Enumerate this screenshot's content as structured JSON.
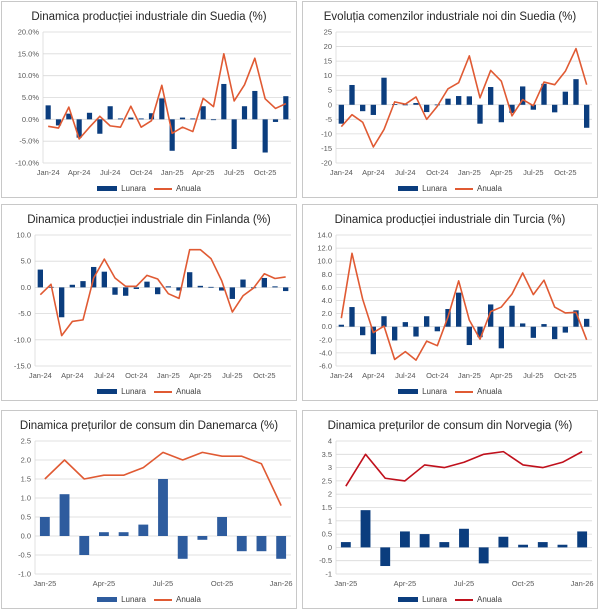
{
  "legend": {
    "bar_label": "Lunara",
    "line_label": "Anuala"
  },
  "chart_data": [
    {
      "id": "se-ip",
      "type": "bar+line",
      "title": "Dinamica producției industriale din Suedia (%)",
      "ylim": [
        -10,
        20
      ],
      "yticks": [
        -10,
        -5,
        0,
        5,
        10,
        15,
        20
      ],
      "ytick_format": "pct1",
      "categories": [
        "Jan-24",
        "Feb-24",
        "Mar-24",
        "Apr-24",
        "May-24",
        "Jun-24",
        "Jul-24",
        "Aug-24",
        "Sep-24",
        "Oct-24",
        "Nov-24",
        "Dec-24",
        "Jan-25",
        "Feb-25",
        "Mar-25",
        "Apr-25",
        "May-25",
        "Jun-25",
        "Jul-25",
        "Aug-25",
        "Sep-25",
        "Oct-25",
        "Nov-25",
        "Dec-25"
      ],
      "xtick_labels": [
        "Jan-24",
        "",
        "",
        "Apr-24",
        "",
        "",
        "Jul-24",
        "",
        "",
        "Oct-24",
        "",
        "",
        "Jan-25",
        "",
        "",
        "Apr-25",
        "",
        "",
        "Jul-25",
        "",
        "",
        "Oct-25",
        "",
        ""
      ],
      "series": [
        {
          "name": "Lunara",
          "kind": "bar",
          "color": "#0b3d7e",
          "values": [
            3.2,
            -1.4,
            1.3,
            -4.2,
            1.5,
            -3.3,
            3.0,
            0.2,
            0.4,
            0.2,
            1.4,
            4.8,
            -7.2,
            0.4,
            0.2,
            3.0,
            -0.1,
            8.1,
            -6.8,
            3.0,
            6.5,
            -7.6,
            -0.6,
            5.3
          ]
        },
        {
          "name": "Anuala",
          "kind": "line",
          "color": "#e05a33",
          "values": [
            -1.6,
            -2.0,
            2.8,
            -4.5,
            -1.8,
            0.7,
            -1.5,
            -1.8,
            3.0,
            -1.8,
            -0.3,
            7.8,
            -3.2,
            -1.8,
            -2.8,
            4.8,
            2.9,
            15.0,
            4.2,
            7.9,
            14.0,
            4.7,
            2.5,
            3.6
          ]
        }
      ]
    },
    {
      "id": "se-orders",
      "type": "bar+line",
      "title": "Evoluția comenzilor industriale noi din Suedia (%)",
      "ylim": [
        -20,
        25
      ],
      "yticks": [
        -20,
        -15,
        -10,
        -5,
        0,
        5,
        10,
        15,
        20,
        25
      ],
      "ytick_format": "int",
      "categories": [
        "Jan-24",
        "Feb-24",
        "Mar-24",
        "Apr-24",
        "May-24",
        "Jun-24",
        "Jul-24",
        "Aug-24",
        "Sep-24",
        "Oct-24",
        "Nov-24",
        "Dec-24",
        "Jan-25",
        "Feb-25",
        "Mar-25",
        "Apr-25",
        "May-25",
        "Jun-25",
        "Jul-25",
        "Aug-25",
        "Sep-25",
        "Oct-25",
        "Nov-25",
        "Dec-25"
      ],
      "xtick_labels": [
        "Jan-24",
        "",
        "",
        "Apr-24",
        "",
        "",
        "Jul-24",
        "",
        "",
        "Oct-24",
        "",
        "",
        "Jan-25",
        "",
        "",
        "Apr-25",
        "",
        "",
        "Jul-25",
        "",
        "",
        "Oct-25",
        "",
        ""
      ],
      "series": [
        {
          "name": "Lunara",
          "kind": "bar",
          "color": "#0b3d7e",
          "values": [
            -6.5,
            6.8,
            -2.2,
            -3.5,
            9.3,
            0.2,
            0.1,
            0.6,
            -2.5,
            0.1,
            2.1,
            3.0,
            2.9,
            -6.5,
            6.1,
            -6.0,
            -2.8,
            6.3,
            -1.7,
            7.2,
            -2.6,
            4.5,
            8.8,
            -7.9
          ]
        },
        {
          "name": "Anuala",
          "kind": "line",
          "color": "#e05a33",
          "values": [
            -7.5,
            -3.4,
            -6.0,
            -14.5,
            -8.5,
            1.0,
            0.2,
            2.7,
            -5.0,
            -0.5,
            5.5,
            7.6,
            16.8,
            2.4,
            11.8,
            8.1,
            -3.8,
            1.8,
            -0.3,
            7.8,
            6.9,
            11.5,
            19.3,
            6.9
          ]
        }
      ]
    },
    {
      "id": "fi-ip",
      "type": "bar+line",
      "title": "Dinamica producției industriale din Finlanda (%)",
      "ylim": [
        -15,
        10
      ],
      "yticks": [
        -15,
        -10,
        -5,
        0,
        5,
        10
      ],
      "ytick_format": "dec1",
      "categories": [
        "Jan-24",
        "Feb-24",
        "Mar-24",
        "Apr-24",
        "May-24",
        "Jun-24",
        "Jul-24",
        "Aug-24",
        "Sep-24",
        "Oct-24",
        "Nov-24",
        "Dec-24",
        "Jan-25",
        "Feb-25",
        "Mar-25",
        "Apr-25",
        "May-25",
        "Jun-25",
        "Jul-25",
        "Aug-25",
        "Sep-25",
        "Oct-25",
        "Nov-25",
        "Dec-25"
      ],
      "xtick_labels": [
        "Jan-24",
        "",
        "",
        "Apr-24",
        "",
        "",
        "Jul-24",
        "",
        "",
        "Oct-24",
        "",
        "",
        "Jan-25",
        "",
        "",
        "Apr-25",
        "",
        "",
        "Jul-25",
        "",
        "",
        "Oct-25",
        "",
        ""
      ],
      "series": [
        {
          "name": "Lunara",
          "kind": "bar",
          "color": "#0b3d7e",
          "values": [
            3.4,
            0.1,
            -5.7,
            0.5,
            1.2,
            3.9,
            3.0,
            -1.4,
            -1.6,
            -0.3,
            1.1,
            -1.3,
            0.2,
            -0.6,
            2.9,
            0.3,
            0.1,
            -0.6,
            -2.2,
            1.5,
            0.0,
            1.8,
            0.2,
            -0.7
          ]
        },
        {
          "name": "Anuala",
          "kind": "line",
          "color": "#e05a33",
          "values": [
            -1.4,
            0.6,
            -9.2,
            -6.5,
            -6.2,
            1.8,
            5.4,
            1.8,
            0.2,
            0.2,
            2.3,
            1.6,
            -1.2,
            -2.1,
            7.2,
            7.2,
            5.5,
            1.3,
            -4.7,
            -1.6,
            -0.1,
            2.6,
            1.7,
            2.0
          ]
        }
      ]
    },
    {
      "id": "tr-ip",
      "type": "bar+line",
      "title": "Dinamica producției industriale din Turcia (%)",
      "ylim": [
        -6,
        14
      ],
      "yticks": [
        -6,
        -4,
        -2,
        0,
        2,
        4,
        6,
        8,
        10,
        12,
        14
      ],
      "ytick_format": "dec1",
      "categories": [
        "Jan-24",
        "Feb-24",
        "Mar-24",
        "Apr-24",
        "May-24",
        "Jun-24",
        "Jul-24",
        "Aug-24",
        "Sep-24",
        "Oct-24",
        "Nov-24",
        "Dec-24",
        "Jan-25",
        "Feb-25",
        "Mar-25",
        "Apr-25",
        "May-25",
        "Jun-25",
        "Jul-25",
        "Aug-25",
        "Sep-25",
        "Oct-25",
        "Nov-25",
        "Dec-25"
      ],
      "xtick_labels": [
        "Jan-24",
        "",
        "",
        "Apr-24",
        "",
        "",
        "Jul-24",
        "",
        "",
        "Oct-24",
        "",
        "",
        "Jan-25",
        "",
        "",
        "Apr-25",
        "",
        "",
        "Jul-25",
        "",
        "",
        "Oct-25",
        "",
        ""
      ],
      "series": [
        {
          "name": "Lunara",
          "kind": "bar",
          "color": "#0b3d7e",
          "values": [
            0.3,
            3.0,
            -1.3,
            -4.2,
            1.6,
            -2.1,
            0.7,
            -1.5,
            1.6,
            -0.7,
            2.7,
            5.2,
            -2.8,
            -1.6,
            3.4,
            -3.3,
            3.2,
            0.5,
            -1.7,
            0.4,
            -1.9,
            -0.9,
            2.5,
            1.2
          ]
        },
        {
          "name": "Anuala",
          "kind": "line",
          "color": "#e05a33",
          "values": [
            1.3,
            11.2,
            4.2,
            -0.9,
            0.1,
            -5.0,
            -3.8,
            -5.1,
            -2.2,
            -2.9,
            1.5,
            7.0,
            1.0,
            -1.9,
            2.3,
            3.0,
            5.0,
            8.2,
            4.9,
            7.1,
            3.0,
            2.1,
            2.2,
            -2.0
          ]
        }
      ]
    },
    {
      "id": "dk-cpi",
      "type": "bar+line",
      "title": "Dinamica prețurilor de consum din Danemarca (%)",
      "ylim": [
        -1,
        2.5
      ],
      "yticks": [
        -1,
        -0.5,
        0,
        0.5,
        1,
        1.5,
        2,
        2.5
      ],
      "ytick_format": "dec1",
      "categories": [
        "Jan-25",
        "Feb-25",
        "Mar-25",
        "Apr-25",
        "May-25",
        "Jun-25",
        "Jul-25",
        "Aug-25",
        "Sep-25",
        "Oct-25",
        "Nov-25",
        "Dec-25",
        "Jan-26"
      ],
      "xtick_labels": [
        "Jan-25",
        "",
        "",
        "Apr-25",
        "",
        "",
        "Jul-25",
        "",
        "",
        "Oct-25",
        "",
        "",
        "Jan-26"
      ],
      "series": [
        {
          "name": "Lunara",
          "kind": "bar",
          "color": "#2e5c9e",
          "values": [
            0.5,
            1.1,
            -0.5,
            0.1,
            0.1,
            0.3,
            1.5,
            -0.6,
            -0.1,
            0.5,
            -0.4,
            -0.4,
            -0.6
          ]
        },
        {
          "name": "Anuala",
          "kind": "line",
          "color": "#e05a33",
          "values": [
            1.5,
            2.0,
            1.5,
            1.6,
            1.6,
            1.8,
            2.2,
            2.0,
            2.2,
            2.1,
            2.1,
            1.9,
            0.8
          ]
        }
      ]
    },
    {
      "id": "no-cpi",
      "type": "bar+line",
      "title": "Dinamica prețurilor de consum din Norvegia (%)",
      "ylim": [
        -1,
        4
      ],
      "yticks": [
        -1,
        -0.5,
        0,
        0.5,
        1,
        1.5,
        2,
        2.5,
        3,
        3.5,
        4
      ],
      "ytick_format": "auto",
      "categories": [
        "Jan-25",
        "Feb-25",
        "Mar-25",
        "Apr-25",
        "May-25",
        "Jun-25",
        "Jul-25",
        "Aug-25",
        "Sep-25",
        "Oct-25",
        "Nov-25",
        "Dec-25",
        "Jan-26"
      ],
      "xtick_labels": [
        "Jan-25",
        "",
        "",
        "Apr-25",
        "",
        "",
        "Jul-25",
        "",
        "",
        "Oct-25",
        "",
        "",
        "Jan-26"
      ],
      "series": [
        {
          "name": "Lunara",
          "kind": "bar",
          "color": "#0b3d7e",
          "values": [
            0.2,
            1.4,
            -0.7,
            0.6,
            0.5,
            0.2,
            0.7,
            -0.6,
            0.4,
            0.1,
            0.2,
            0.1,
            0.6
          ]
        },
        {
          "name": "Anuala",
          "kind": "line",
          "color": "#c0101c",
          "values": [
            2.3,
            3.5,
            2.6,
            2.5,
            3.1,
            3.0,
            3.2,
            3.5,
            3.6,
            3.1,
            3.0,
            3.2,
            3.6
          ]
        }
      ]
    }
  ]
}
